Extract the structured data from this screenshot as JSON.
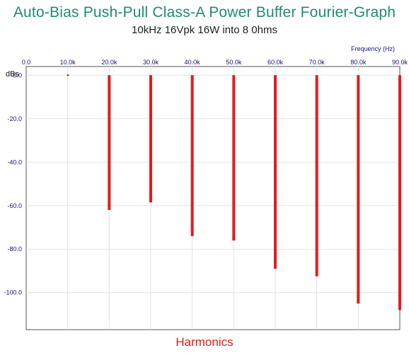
{
  "chart_data": {
    "type": "bar",
    "title": "Auto-Bias Push-Pull Class-A Power Buffer Fourier-Graph",
    "subtitle": "10kHz 16Vpk 16W into 8 0hms",
    "xlabel": "Frequency   (Hz)",
    "ylabel": "dBs",
    "footer_label": "Harmonics",
    "xlim": [
      0,
      90000
    ],
    "ylim": [
      -117,
      4
    ],
    "x_ticks": [
      "0.0",
      "10.0k",
      "20.0k",
      "30.0k",
      "40.0k",
      "50.0k",
      "60.0k",
      "70.0k",
      "80.0k",
      "90.0k"
    ],
    "y_ticks": [
      "0.0",
      "-20.0",
      "-40.0",
      "-60.0",
      "-80.0",
      "-100.0"
    ],
    "y_tick_values": [
      0,
      -20,
      -40,
      -60,
      -80,
      -100
    ],
    "grid": true,
    "bar_color": "#e41b1b",
    "x": [
      10000,
      20000,
      30000,
      40000,
      50000,
      60000,
      70000,
      80000,
      90000
    ],
    "values": [
      0,
      -62,
      -58.5,
      -74,
      -76,
      -89,
      -92.5,
      -105,
      -108
    ]
  }
}
